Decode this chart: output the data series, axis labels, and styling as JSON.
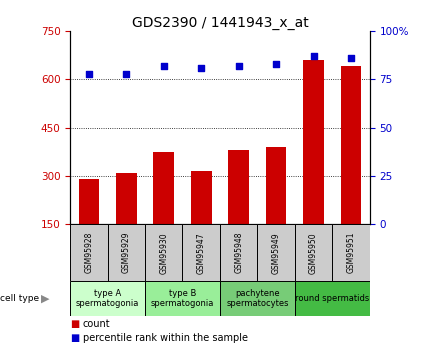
{
  "title": "GDS2390 / 1441943_x_at",
  "samples": [
    "GSM95928",
    "GSM95929",
    "GSM95930",
    "GSM95947",
    "GSM95948",
    "GSM95949",
    "GSM95950",
    "GSM95951"
  ],
  "counts": [
    290,
    310,
    375,
    315,
    380,
    390,
    660,
    640
  ],
  "percentile_ranks": [
    78,
    78,
    82,
    81,
    82,
    83,
    87,
    86
  ],
  "ylim_left": [
    150,
    750
  ],
  "ylim_right": [
    0,
    100
  ],
  "yticks_left": [
    150,
    300,
    450,
    600,
    750
  ],
  "yticks_right": [
    0,
    25,
    50,
    75,
    100
  ],
  "ytick_labels_right": [
    "0",
    "25",
    "50",
    "75",
    "100%"
  ],
  "bar_color": "#cc0000",
  "dot_color": "#0000cc",
  "cell_groups": [
    {
      "label": "type A\nspermatogonia",
      "indices": [
        0,
        1
      ],
      "color": "#ccffcc"
    },
    {
      "label": "type B\nspermatogonia",
      "indices": [
        2,
        3
      ],
      "color": "#99ee99"
    },
    {
      "label": "pachytene\nspermatocytes",
      "indices": [
        4,
        5
      ],
      "color": "#77cc77"
    },
    {
      "label": "round spermatids",
      "indices": [
        6,
        7
      ],
      "color": "#44bb44"
    }
  ],
  "legend_count_label": "count",
  "legend_pct_label": "percentile rank within the sample",
  "title_fontsize": 10,
  "tick_fontsize": 7.5,
  "sample_fontsize": 5.5,
  "celltype_fontsize": 6,
  "legend_fontsize": 7
}
